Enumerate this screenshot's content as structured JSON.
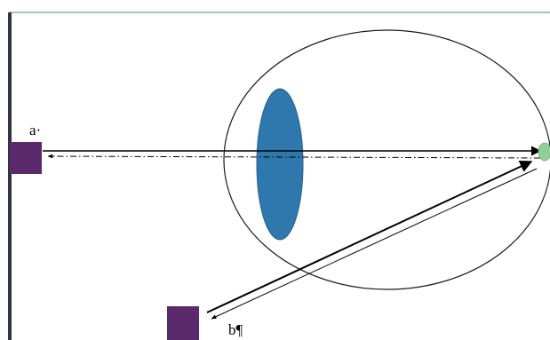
{
  "labels": {
    "a": "a·",
    "b": "b¶"
  },
  "colors": {
    "background": "#ffffff",
    "top_rule": "#3f8c8c",
    "left_edge": "#2f3445",
    "square": "#5b2a6d",
    "lens": "#2f78ae",
    "lens_edge": "#245f8c",
    "retina_spot": "#8fcf9a",
    "outline": "#1a1a1a",
    "ray": "#000000"
  }
}
